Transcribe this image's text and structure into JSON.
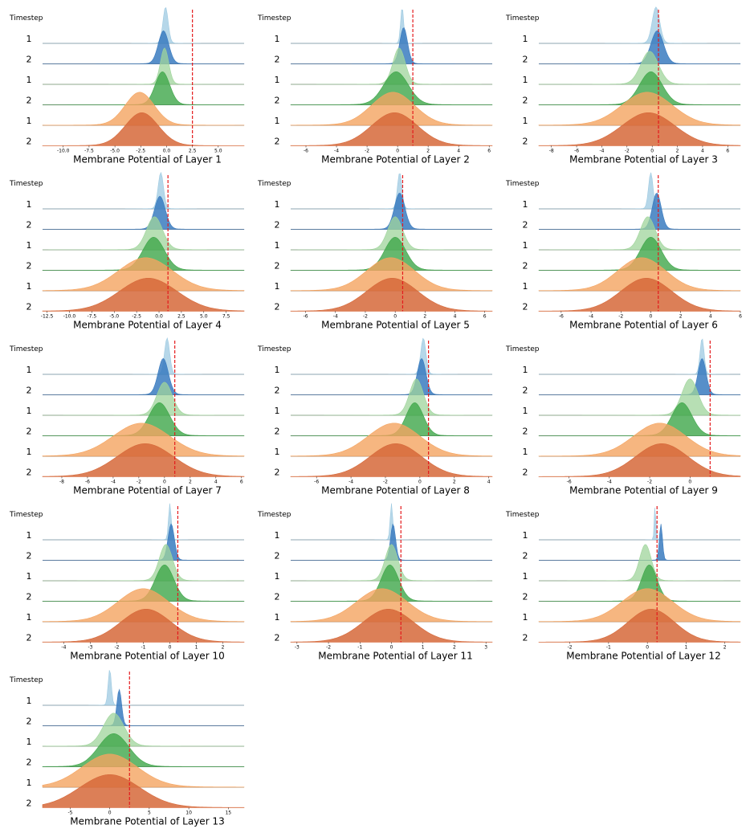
{
  "colors": {
    "ts1_light": "#9ecae1",
    "ts2_light": "#3a7bbf",
    "ts1_green": "#9fd49b",
    "ts2_green": "#3fa64a",
    "ts1_orange": "#f4a460",
    "ts2_orange": "#d6693a",
    "threshold": "#e41a1c",
    "baseline": "#555555"
  },
  "row_group_labels": [
    "1",
    "2",
    "1",
    "2",
    "1",
    "2"
  ],
  "timestep_label": "Timestep",
  "chart_data": [
    {
      "type": "area",
      "title": "",
      "xlabel": "Membrane Potential of Layer 1",
      "xlim": [
        -12,
        7.5
      ],
      "ticks": [
        "-10.0",
        "-7.5",
        "-5.0",
        "-2.5",
        "0.0",
        "2.5",
        "5.0"
      ],
      "tick_values": [
        -10,
        -7.5,
        -5,
        -2.5,
        0,
        2.5,
        5
      ],
      "threshold": 2.5,
      "series": [
        {
          "peak": -0.1,
          "width": 0.25
        },
        {
          "peak": -0.3,
          "width": 0.5
        },
        {
          "peak": -0.2,
          "width": 0.4
        },
        {
          "peak": -0.4,
          "width": 0.7
        },
        {
          "peak": -2.6,
          "width": 1.4
        },
        {
          "peak": -2.4,
          "width": 1.6
        }
      ]
    },
    {
      "type": "area",
      "title": "",
      "xlabel": "Membrane Potential of Layer 2",
      "xlim": [
        -7,
        6.2
      ],
      "ticks": [
        "-6",
        "-4",
        "-2",
        "0",
        "2",
        "4",
        "6"
      ],
      "tick_values": [
        -6,
        -4,
        -2,
        0,
        2,
        4,
        6
      ],
      "threshold": 1.0,
      "series": [
        {
          "peak": 0.3,
          "width": 0.1
        },
        {
          "peak": 0.4,
          "width": 0.25
        },
        {
          "peak": 0.1,
          "width": 0.4
        },
        {
          "peak": -0.1,
          "width": 0.8
        },
        {
          "peak": -0.3,
          "width": 1.4
        },
        {
          "peak": -0.2,
          "width": 1.5
        }
      ]
    },
    {
      "type": "area",
      "title": "",
      "xlabel": "Membrane Potential of Layer 3",
      "xlim": [
        -9,
        7
      ],
      "ticks": [
        "-8",
        "-6",
        "-4",
        "-2",
        "0",
        "2",
        "4",
        "6"
      ],
      "tick_values": [
        -8,
        -6,
        -4,
        -2,
        0,
        2,
        4,
        6
      ],
      "threshold": 0.5,
      "series": [
        {
          "peak": 0.3,
          "width": 0.3
        },
        {
          "peak": 0.4,
          "width": 0.5
        },
        {
          "peak": -0.2,
          "width": 0.7
        },
        {
          "peak": -0.1,
          "width": 0.9
        },
        {
          "peak": -0.4,
          "width": 2.0
        },
        {
          "peak": -0.3,
          "width": 2.1
        }
      ]
    },
    {
      "type": "area",
      "title": "",
      "xlabel": "Membrane Potential of Layer 4",
      "xlim": [
        -13,
        9.5
      ],
      "ticks": [
        "-12.5",
        "-10.0",
        "-7.5",
        "-5.0",
        "-2.5",
        "0.0",
        "2.5",
        "5.0",
        "7.5"
      ],
      "tick_values": [
        -12.5,
        -10,
        -7.5,
        -5,
        -2.5,
        0,
        2.5,
        5,
        7.5
      ],
      "threshold": 1.0,
      "series": [
        {
          "peak": 0.2,
          "width": 0.3
        },
        {
          "peak": 0.1,
          "width": 0.6
        },
        {
          "peak": -0.5,
          "width": 0.9
        },
        {
          "peak": -0.6,
          "width": 1.2
        },
        {
          "peak": -1.5,
          "width": 3.0
        },
        {
          "peak": -1.2,
          "width": 3.2
        }
      ]
    },
    {
      "type": "area",
      "title": "",
      "xlabel": "Membrane Potential of Layer 5",
      "xlim": [
        -7,
        6.5
      ],
      "ticks": [
        "-6",
        "-4",
        "-2",
        "0",
        "2",
        "4",
        "6"
      ],
      "tick_values": [
        -6,
        -4,
        -2,
        0,
        2,
        4,
        6
      ],
      "threshold": 0.5,
      "series": [
        {
          "peak": 0.3,
          "width": 0.15
        },
        {
          "peak": 0.3,
          "width": 0.35
        },
        {
          "peak": 0.0,
          "width": 0.5
        },
        {
          "peak": 0.0,
          "width": 0.7
        },
        {
          "peak": -0.3,
          "width": 1.6
        },
        {
          "peak": -0.2,
          "width": 1.7
        }
      ]
    },
    {
      "type": "area",
      "title": "",
      "xlabel": "Membrane Potential of Layer 6",
      "xlim": [
        -7.5,
        6
      ],
      "ticks": [
        "-6",
        "-4",
        "-2",
        "0",
        "2",
        "4",
        "6"
      ],
      "tick_values": [
        -6,
        -4,
        -2,
        0,
        2,
        4,
        6
      ],
      "threshold": 0.5,
      "series": [
        {
          "peak": 0.0,
          "width": 0.15
        },
        {
          "peak": 0.4,
          "width": 0.3
        },
        {
          "peak": -0.2,
          "width": 0.5
        },
        {
          "peak": 0.0,
          "width": 0.7
        },
        {
          "peak": -0.6,
          "width": 1.6
        },
        {
          "peak": -0.3,
          "width": 1.7
        }
      ]
    },
    {
      "type": "area",
      "title": "",
      "xlabel": "Membrane Potential of Layer 7",
      "xlim": [
        -9.5,
        6.2
      ],
      "ticks": [
        "-8",
        "-6",
        "-4",
        "-2",
        "0",
        "2",
        "4",
        "6"
      ],
      "tick_values": [
        -8,
        -6,
        -4,
        -2,
        0,
        2,
        4,
        6
      ],
      "threshold": 0.8,
      "series": [
        {
          "peak": 0.2,
          "width": 0.2
        },
        {
          "peak": -0.1,
          "width": 0.4
        },
        {
          "peak": 0.0,
          "width": 0.6
        },
        {
          "peak": -0.4,
          "width": 0.8
        },
        {
          "peak": -1.8,
          "width": 2.2
        },
        {
          "peak": -1.5,
          "width": 2.2
        }
      ]
    },
    {
      "type": "area",
      "title": "",
      "xlabel": "Membrane Potential of Layer 8",
      "xlim": [
        -7.5,
        4.2
      ],
      "ticks": [
        "-6",
        "-4",
        "-2",
        "0",
        "2",
        "4"
      ],
      "tick_values": [
        -6,
        -4,
        -2,
        0,
        2,
        4
      ],
      "threshold": 0.5,
      "series": [
        {
          "peak": 0.2,
          "width": 0.15
        },
        {
          "peak": 0.1,
          "width": 0.25
        },
        {
          "peak": -0.2,
          "width": 0.4
        },
        {
          "peak": -0.3,
          "width": 0.5
        },
        {
          "peak": -1.5,
          "width": 1.5
        },
        {
          "peak": -1.4,
          "width": 1.5
        }
      ]
    },
    {
      "type": "area",
      "title": "",
      "xlabel": "Membrane Potential of Layer 9",
      "xlim": [
        -7.5,
        2.5
      ],
      "ticks": [
        "-6",
        "-4",
        "-2",
        "0"
      ],
      "tick_values": [
        -6,
        -4,
        -2,
        0
      ],
      "threshold": 1.0,
      "series": [
        {
          "peak": 0.6,
          "width": 0.1
        },
        {
          "peak": 0.6,
          "width": 0.2
        },
        {
          "peak": 0.0,
          "width": 0.4
        },
        {
          "peak": -0.4,
          "width": 0.5
        },
        {
          "peak": -1.5,
          "width": 1.3
        },
        {
          "peak": -1.4,
          "width": 1.3
        }
      ]
    },
    {
      "type": "area",
      "title": "",
      "xlabel": "Membrane Potential of Layer 10",
      "xlim": [
        -4.8,
        2.8
      ],
      "ticks": [
        "-4",
        "-3",
        "-2",
        "-1",
        "0",
        "1",
        "2"
      ],
      "tick_values": [
        -4,
        -3,
        -2,
        -1,
        0,
        1,
        2
      ],
      "threshold": 0.3,
      "series": [
        {
          "peak": 0.0,
          "width": 0.05
        },
        {
          "peak": 0.05,
          "width": 0.12
        },
        {
          "peak": -0.15,
          "width": 0.25
        },
        {
          "peak": -0.2,
          "width": 0.35
        },
        {
          "peak": -1.0,
          "width": 0.95
        },
        {
          "peak": -0.9,
          "width": 0.95
        }
      ]
    },
    {
      "type": "area",
      "title": "",
      "xlabel": "Membrane Potential of Layer 11",
      "xlim": [
        -3.2,
        3.2
      ],
      "ticks": [
        "-3",
        "-2",
        "-1",
        "0",
        "1",
        "2",
        "3"
      ],
      "tick_values": [
        -3,
        -2,
        -1,
        0,
        1,
        2,
        3
      ],
      "threshold": 0.3,
      "series": [
        {
          "peak": 0.0,
          "width": 0.04
        },
        {
          "peak": 0.05,
          "width": 0.08
        },
        {
          "peak": 0.0,
          "width": 0.2
        },
        {
          "peak": -0.05,
          "width": 0.28
        },
        {
          "peak": -0.3,
          "width": 0.8
        },
        {
          "peak": -0.1,
          "width": 0.8
        }
      ]
    },
    {
      "type": "area",
      "title": "",
      "xlabel": "Membrane Potential of Layer 12",
      "xlim": [
        -2.8,
        2.4
      ],
      "ticks": [
        "-2",
        "-1",
        "0",
        "1",
        "2"
      ],
      "tick_values": [
        -2,
        -1,
        0,
        1,
        2
      ],
      "threshold": 0.25,
      "series": [
        {
          "peak": 0.2,
          "width": 0.02
        },
        {
          "peak": 0.35,
          "width": 0.04
        },
        {
          "peak": -0.05,
          "width": 0.15
        },
        {
          "peak": 0.05,
          "width": 0.2
        },
        {
          "peak": 0.0,
          "width": 0.65
        },
        {
          "peak": 0.1,
          "width": 0.6
        }
      ]
    },
    {
      "type": "area",
      "title": "",
      "xlabel": "Membrane Potential of Layer 13",
      "xlim": [
        -8.5,
        17
      ],
      "ticks": [
        "-5",
        "0",
        "5",
        "10",
        "15"
      ],
      "tick_values": [
        -5,
        0,
        5,
        10,
        15
      ],
      "threshold": 2.5,
      "series": [
        {
          "peak": 0.0,
          "width": 0.2
        },
        {
          "peak": 1.2,
          "width": 0.3
        },
        {
          "peak": 0.5,
          "width": 1.3
        },
        {
          "peak": 0.5,
          "width": 1.9
        },
        {
          "peak": 0.0,
          "width": 3.5
        },
        {
          "peak": 0.0,
          "width": 3.8
        }
      ]
    }
  ]
}
